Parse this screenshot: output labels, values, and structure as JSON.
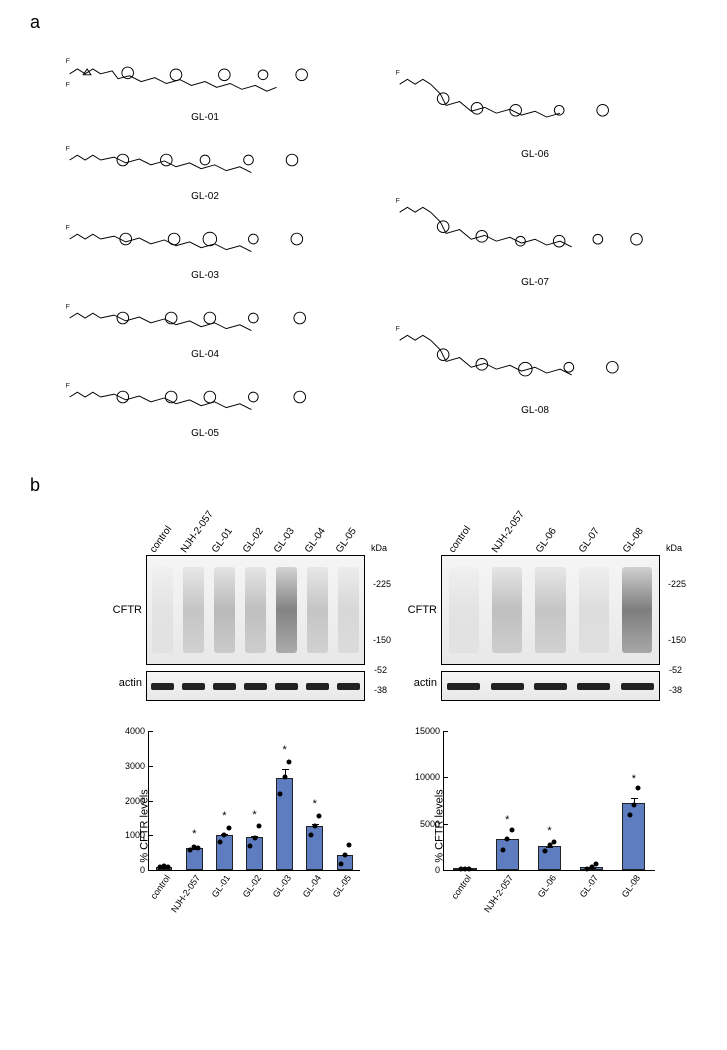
{
  "panel_a": {
    "label": "a",
    "structures_left": [
      "GL-01",
      "GL-02",
      "GL-03",
      "GL-04",
      "GL-05"
    ],
    "structures_right": [
      "GL-06",
      "GL-07",
      "GL-08"
    ]
  },
  "panel_b": {
    "label": "b",
    "blots": {
      "left": {
        "lanes": [
          "control",
          "NJH-2-057",
          "GL-01",
          "GL-02",
          "GL-03",
          "GL-04",
          "GL-05"
        ],
        "cftr_label": "CFTR",
        "actin_label": "actin",
        "kda_label": "kDa",
        "markers_cftr": [
          "225",
          "150"
        ],
        "markers_actin": [
          "52",
          "38"
        ],
        "smear_intensity": [
          0.1,
          0.35,
          0.45,
          0.4,
          0.9,
          0.35,
          0.2
        ]
      },
      "right": {
        "lanes": [
          "control",
          "NJH-2-057",
          "GL-06",
          "GL-07",
          "GL-08"
        ],
        "cftr_label": "CFTR",
        "actin_label": "actin",
        "kda_label": "kDa",
        "markers_cftr": [
          "225",
          "150"
        ],
        "markers_actin": [
          "52",
          "38"
        ],
        "smear_intensity": [
          0.1,
          0.4,
          0.35,
          0.15,
          0.95
        ]
      }
    },
    "charts": {
      "bar_color": "#5e7cc0",
      "bar_border": "#222222",
      "left": {
        "ylabel": "% CFTR levels",
        "ylim": [
          0,
          4000
        ],
        "ytick_step": 1000,
        "categories": [
          "control",
          "NJH-2-057",
          "GL-01",
          "GL-02",
          "GL-03",
          "GL-04",
          "GL-05"
        ],
        "values": [
          100,
          620,
          1000,
          950,
          2650,
          1280,
          430
        ],
        "errors": [
          40,
          80,
          230,
          310,
          460,
          280,
          290
        ],
        "signif": [
          "",
          "*",
          "*",
          "*",
          "*",
          "*",
          ""
        ],
        "dots": [
          [
            90,
            110,
            100
          ],
          [
            580,
            650,
            640
          ],
          [
            800,
            1000,
            1220
          ],
          [
            680,
            920,
            1260
          ],
          [
            2180,
            2680,
            3100
          ],
          [
            1020,
            1260,
            1560
          ],
          [
            160,
            420,
            720
          ]
        ]
      },
      "right": {
        "ylabel": "% CFTR levels",
        "ylim": [
          0,
          15000
        ],
        "ytick_step": 5000,
        "categories": [
          "control",
          "NJH-2-057",
          "GL-06",
          "GL-07",
          "GL-08"
        ],
        "values": [
          100,
          3300,
          2550,
          370,
          7250
        ],
        "errors": [
          40,
          900,
          450,
          260,
          1350
        ],
        "signif": [
          "",
          "*",
          "*",
          "",
          "*"
        ],
        "dots": [
          [
            90,
            100,
            110
          ],
          [
            2150,
            3400,
            4350
          ],
          [
            2000,
            2650,
            3000
          ],
          [
            160,
            350,
            600
          ],
          [
            5900,
            7000,
            8850
          ]
        ]
      }
    }
  }
}
